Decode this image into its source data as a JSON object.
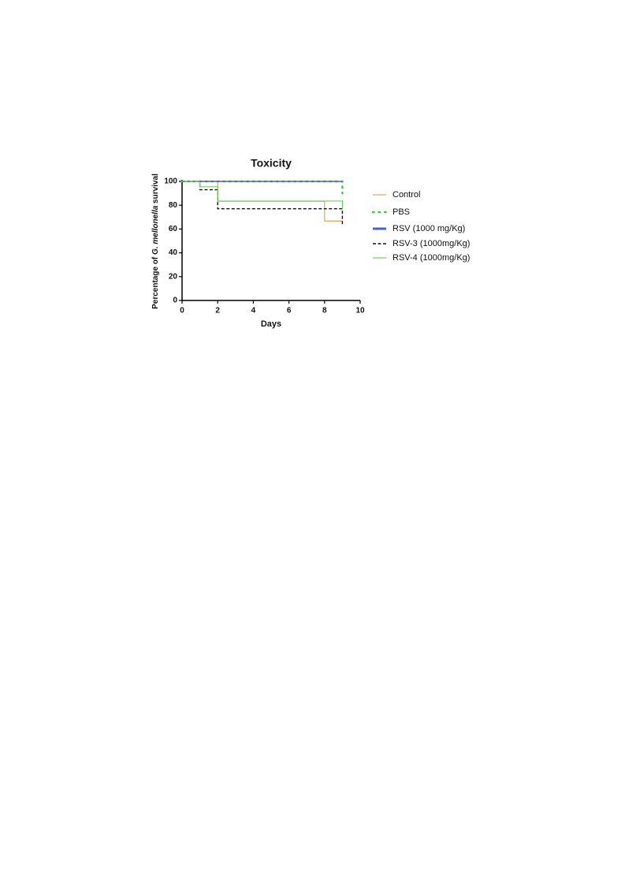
{
  "chart_data": {
    "type": "step",
    "title": "Toxicity",
    "xlabel": "Days",
    "ylabel": [
      "Percentage of ",
      "G. mellonella",
      " survival"
    ],
    "xlim": [
      0,
      10
    ],
    "ylim": [
      0,
      100
    ],
    "xticks": [
      0,
      2,
      4,
      6,
      8,
      10
    ],
    "yticks": [
      0,
      20,
      40,
      60,
      80,
      100
    ],
    "series": [
      {
        "name": "Control",
        "color": "#e8a35a",
        "style": "solid",
        "x": [
          0,
          2,
          8,
          9
        ],
        "values": [
          100,
          83.3,
          66.7,
          66.7
        ]
      },
      {
        "name": "PBS",
        "color": "#3ad03a",
        "style": "dotted",
        "x": [
          0,
          9
        ],
        "values": [
          100,
          90
        ]
      },
      {
        "name": "RSV (1000 mg/Kg)",
        "color": "#4a5ee0",
        "style": "thick",
        "x": [
          0,
          9
        ],
        "values": [
          100,
          100
        ]
      },
      {
        "name": "RSV-3 (1000mg/Kg)",
        "color": "#111111",
        "style": "dashed",
        "x": [
          0,
          1,
          2,
          9
        ],
        "values": [
          100,
          93,
          77,
          63
        ]
      },
      {
        "name": "RSV-4 (1000mg/Kg)",
        "color": "#6cd65c",
        "style": "solid",
        "x": [
          0,
          1,
          2,
          9
        ],
        "values": [
          100,
          95.5,
          83.5,
          76.5
        ]
      }
    ]
  }
}
